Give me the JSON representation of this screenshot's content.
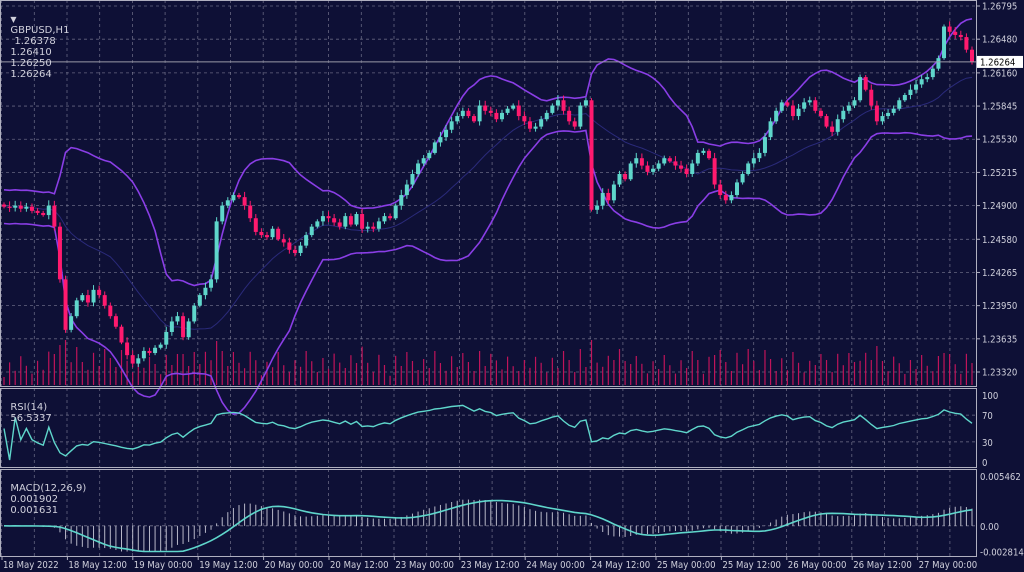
{
  "header": {
    "symbol": "GBPUSD,H1",
    "open": "1.26378",
    "high": "1.26410",
    "low": "1.26250",
    "close": "1.26264"
  },
  "rsi": {
    "label": "RSI(14)",
    "value": "56.5337",
    "ticks": [
      "100",
      "70",
      "30",
      "0"
    ],
    "levels": [
      100,
      70,
      30,
      0
    ]
  },
  "macd": {
    "label": "MACD(12,26,9)",
    "main": "0.001902",
    "signal": "0.001631",
    "ticks": [
      "0.005462",
      "0.00",
      "-0.002814"
    ],
    "levels": [
      0.005462,
      0,
      -0.002814
    ]
  },
  "colors": {
    "background": "#0e1036",
    "bull": "#5fd6cb",
    "bear": "#ff1a6e",
    "bands": "#8a3ee6",
    "grid": "#8a8aa0",
    "volume": "#c0145a",
    "rsi_line": "#5fd6cb",
    "macd_hist": "#b8b8c8",
    "macd_signal": "#5fd6cb"
  },
  "chart_data": {
    "type": "candlestick",
    "symbol": "GBPUSD",
    "timeframe": "H1",
    "price_ticks": [
      "1.26795",
      "1.26480",
      "1.26160",
      "1.25845",
      "1.25530",
      "1.25215",
      "1.24900",
      "1.24580",
      "1.24265",
      "1.23950",
      "1.23635",
      "1.23320"
    ],
    "price_levels": [
      1.26795,
      1.2648,
      1.2616,
      1.25845,
      1.2553,
      1.25215,
      1.249,
      1.2458,
      1.24265,
      1.2395,
      1.23635,
      1.2332
    ],
    "current_price": "1.26264",
    "x_labels": [
      "18 May 2022",
      "18 May 12:00",
      "19 May 00:00",
      "19 May 12:00",
      "20 May 00:00",
      "20 May 12:00",
      "23 May 00:00",
      "23 May 12:00",
      "24 May 00:00",
      "24 May 12:00",
      "25 May 00:00",
      "25 May 12:00",
      "26 May 00:00",
      "26 May 12:00",
      "27 May 00:00"
    ],
    "closes": [
      1.2489,
      1.2488,
      1.249,
      1.2487,
      1.2489,
      1.2485,
      1.2483,
      1.2481,
      1.249,
      1.247,
      1.242,
      1.2372,
      1.2385,
      1.24,
      1.2405,
      1.2398,
      1.241,
      1.2405,
      1.2395,
      1.2385,
      1.2375,
      1.236,
      1.2348,
      1.234,
      1.2345,
      1.2352,
      1.235,
      1.2355,
      1.2358,
      1.237,
      1.238,
      1.2385,
      1.2365,
      1.238,
      1.2395,
      1.2405,
      1.2412,
      1.242,
      1.2475,
      1.249,
      1.2495,
      1.25,
      1.2498,
      1.249,
      1.2478,
      1.2465,
      1.2462,
      1.246,
      1.2468,
      1.2458,
      1.2455,
      1.2448,
      1.2445,
      1.2452,
      1.2462,
      1.247,
      1.2475,
      1.248,
      1.2478,
      1.2474,
      1.247,
      1.248,
      1.2472,
      1.2482,
      1.2468,
      1.247,
      1.2468,
      1.2475,
      1.248,
      1.2478,
      1.249,
      1.25,
      1.251,
      1.252,
      1.253,
      1.2535,
      1.254,
      1.255,
      1.2555,
      1.2562,
      1.257,
      1.2575,
      1.258,
      1.2575,
      1.257,
      1.2585,
      1.258,
      1.2578,
      1.2572,
      1.2578,
      1.2582,
      1.2585,
      1.2575,
      1.257,
      1.2563,
      1.2565,
      1.2572,
      1.2578,
      1.2585,
      1.259,
      1.258,
      1.257,
      1.2565,
      1.2585,
      1.259,
      1.2486,
      1.249,
      1.2502,
      1.2495,
      1.251,
      1.252,
      1.2515,
      1.253,
      1.2535,
      1.2528,
      1.2522,
      1.2525,
      1.253,
      1.2535,
      1.2532,
      1.2528,
      1.2525,
      1.252,
      1.253,
      1.254,
      1.2542,
      1.2535,
      1.251,
      1.25,
      1.2495,
      1.25,
      1.2512,
      1.252,
      1.253,
      1.2535,
      1.254,
      1.2555,
      1.257,
      1.258,
      1.2588,
      1.2585,
      1.2575,
      1.2582,
      1.2588,
      1.259,
      1.258,
      1.2575,
      1.2565,
      1.256,
      1.2572,
      1.258,
      1.2585,
      1.259,
      1.2612,
      1.26,
      1.2585,
      1.257,
      1.2575,
      1.2578,
      1.2582,
      1.259,
      1.2595,
      1.26,
      1.2605,
      1.261,
      1.2612,
      1.262,
      1.263,
      1.266,
      1.2655,
      1.2652,
      1.265,
      1.2638,
      1.26264
    ]
  }
}
